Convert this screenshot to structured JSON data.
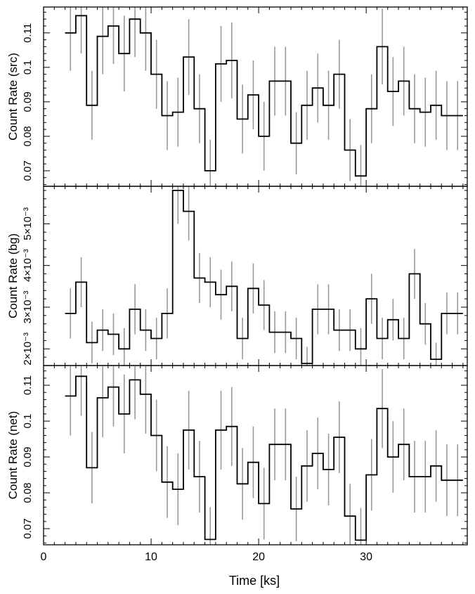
{
  "chart_data": [
    {
      "type": "line",
      "step": true,
      "ylabel": "Count Rate (src)",
      "xlim": [
        0,
        39.4
      ],
      "ylim": [
        0.0655,
        0.1175
      ],
      "yticks": [
        0.07,
        0.08,
        0.09,
        0.1,
        0.11
      ],
      "yticklabels": [
        "0.07",
        "0.08",
        "0.09",
        "0.1",
        "0.11"
      ],
      "x": [
        2.5,
        3.5,
        4.5,
        5.5,
        6.5,
        7.5,
        8.5,
        9.5,
        10.5,
        11.5,
        12.5,
        13.5,
        14.5,
        15.5,
        16.5,
        17.5,
        18.5,
        19.5,
        20.5,
        21.5,
        22.5,
        23.5,
        24.5,
        25.5,
        26.5,
        27.5,
        28.5,
        29.5,
        30.5,
        31.5,
        32.5,
        33.5,
        34.5,
        35.5,
        36.5,
        37.5,
        38.5
      ],
      "values": [
        0.11,
        0.115,
        0.089,
        0.109,
        0.112,
        0.104,
        0.114,
        0.11,
        0.098,
        0.086,
        0.087,
        0.103,
        0.088,
        0.07,
        0.101,
        0.102,
        0.085,
        0.092,
        0.08,
        0.096,
        0.096,
        0.078,
        0.089,
        0.094,
        0.089,
        0.098,
        0.076,
        0.0685,
        0.088,
        0.106,
        0.093,
        0.096,
        0.088,
        0.087,
        0.089,
        0.086,
        0.086
      ],
      "errors": [
        0.011,
        0.011,
        0.01,
        0.011,
        0.011,
        0.011,
        0.011,
        0.011,
        0.01,
        0.01,
        0.01,
        0.011,
        0.01,
        0.009,
        0.011,
        0.011,
        0.01,
        0.01,
        0.01,
        0.01,
        0.01,
        0.009,
        0.01,
        0.01,
        0.01,
        0.01,
        0.009,
        0.009,
        0.01,
        0.011,
        0.01,
        0.01,
        0.01,
        0.01,
        0.01,
        0.01,
        0.01
      ]
    },
    {
      "type": "line",
      "step": true,
      "ylabel": "Count Rate (bg)",
      "xlim": [
        0,
        39.4
      ],
      "ylim": [
        0.0016,
        0.0059
      ],
      "yticks": [
        0.002,
        0.003,
        0.004,
        0.005
      ],
      "yticklabels": [
        "2×10⁻³",
        "3×10⁻³",
        "4×10⁻³",
        "5×10⁻³"
      ],
      "x": [
        2.5,
        3.5,
        4.5,
        5.5,
        6.5,
        7.5,
        8.5,
        9.5,
        10.5,
        11.5,
        12.5,
        13.5,
        14.5,
        15.5,
        16.5,
        17.5,
        18.5,
        19.5,
        20.5,
        21.5,
        22.5,
        23.5,
        24.5,
        25.5,
        26.5,
        27.5,
        28.5,
        29.5,
        30.5,
        31.5,
        32.5,
        33.5,
        34.5,
        35.5,
        36.5,
        37.5,
        38.5
      ],
      "values": [
        0.00285,
        0.0036,
        0.00215,
        0.00245,
        0.00235,
        0.002,
        0.00295,
        0.00245,
        0.00225,
        0.00285,
        0.0058,
        0.0053,
        0.0037,
        0.0036,
        0.0033,
        0.0035,
        0.00225,
        0.00345,
        0.00305,
        0.0024,
        0.0024,
        0.00225,
        0.00165,
        0.00295,
        0.00295,
        0.00245,
        0.00245,
        0.002,
        0.0032,
        0.00225,
        0.0027,
        0.00225,
        0.0038,
        0.0026,
        0.00175,
        0.00285,
        0.00285
      ],
      "errors": [
        0.0006,
        0.0006,
        0.0005,
        0.0005,
        0.0005,
        0.0005,
        0.0006,
        0.0005,
        0.0005,
        0.0006,
        0.0008,
        0.0007,
        0.0006,
        0.0006,
        0.0006,
        0.0006,
        0.0005,
        0.0006,
        0.0006,
        0.0005,
        0.0005,
        0.0005,
        0.0004,
        0.0006,
        0.0006,
        0.0005,
        0.0005,
        0.0005,
        0.0006,
        0.0005,
        0.0005,
        0.0005,
        0.0006,
        0.0005,
        0.0004,
        0.0005,
        0.0005
      ]
    },
    {
      "type": "line",
      "step": true,
      "ylabel": "Count Rate (net)",
      "xlabel": "Time [ks]",
      "xlim": [
        0,
        39.4
      ],
      "xticks": [
        0,
        10,
        20,
        30
      ],
      "xticklabels": [
        "0",
        "10",
        "20",
        "30"
      ],
      "ylim": [
        0.0655,
        0.1155
      ],
      "yticks": [
        0.07,
        0.08,
        0.09,
        0.1,
        0.11
      ],
      "yticklabels": [
        "0.07",
        "0.08",
        "0.09",
        "0.1",
        "0.11"
      ],
      "x": [
        2.5,
        3.5,
        4.5,
        5.5,
        6.5,
        7.5,
        8.5,
        9.5,
        10.5,
        11.5,
        12.5,
        13.5,
        14.5,
        15.5,
        16.5,
        17.5,
        18.5,
        19.5,
        20.5,
        21.5,
        22.5,
        23.5,
        24.5,
        25.5,
        26.5,
        27.5,
        28.5,
        29.5,
        30.5,
        31.5,
        32.5,
        33.5,
        34.5,
        35.5,
        36.5,
        37.5,
        38.5
      ],
      "values": [
        0.107,
        0.1125,
        0.087,
        0.1065,
        0.1095,
        0.102,
        0.1115,
        0.1075,
        0.096,
        0.083,
        0.081,
        0.0975,
        0.0845,
        0.067,
        0.0975,
        0.0985,
        0.0825,
        0.0885,
        0.077,
        0.0935,
        0.0935,
        0.0755,
        0.0875,
        0.091,
        0.0865,
        0.0955,
        0.0735,
        0.0668,
        0.085,
        0.1035,
        0.09,
        0.0935,
        0.0845,
        0.0845,
        0.0875,
        0.0835,
        0.0835
      ],
      "errors": [
        0.011,
        0.011,
        0.01,
        0.011,
        0.011,
        0.011,
        0.011,
        0.011,
        0.01,
        0.01,
        0.01,
        0.011,
        0.01,
        0.009,
        0.011,
        0.011,
        0.01,
        0.01,
        0.01,
        0.01,
        0.01,
        0.009,
        0.01,
        0.01,
        0.01,
        0.01,
        0.009,
        0.009,
        0.01,
        0.011,
        0.01,
        0.01,
        0.01,
        0.01,
        0.01,
        0.01,
        0.01
      ]
    }
  ],
  "colors": {
    "step_line": "#000000",
    "error_bar": "#999999",
    "axes": "#000000"
  }
}
